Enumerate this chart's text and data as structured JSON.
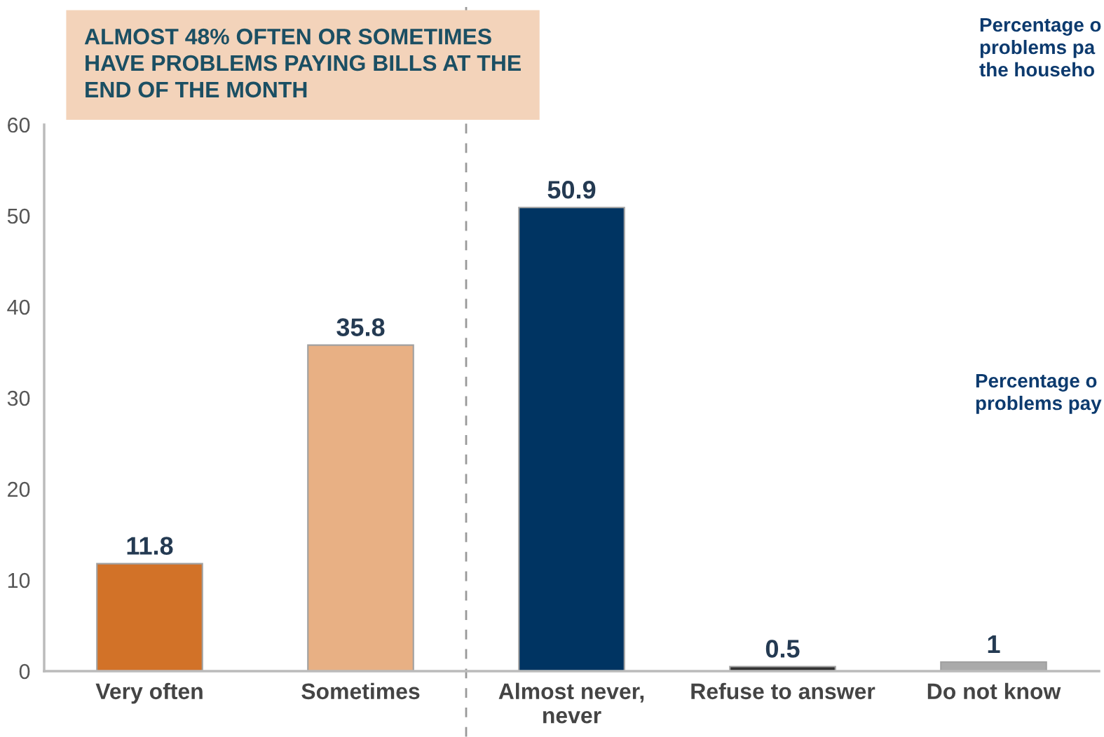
{
  "chart_data": {
    "type": "bar",
    "title": "ALMOST 48% OFTEN OR SOMETIMES HAVE PROBLEMS PAYING BILLS AT THE END OF THE MONTH",
    "categories": [
      "Very often",
      "Sometimes",
      "Almost never,\nnever",
      "Refuse to answer",
      "Do not know"
    ],
    "values": [
      11.8,
      35.8,
      50.9,
      0.5,
      1
    ],
    "colors": [
      "#d27228",
      "#e8b084",
      "#003462",
      "#333333",
      "#aaaaaa"
    ],
    "data_labels": true,
    "ylim": [
      0,
      60
    ],
    "yticks": [
      0,
      10,
      20,
      30,
      40,
      50,
      60
    ],
    "grid": false,
    "annotations": [
      "Percentage o\nproblems pa\nthe househo",
      "Percentage o\nproblems pay"
    ]
  }
}
